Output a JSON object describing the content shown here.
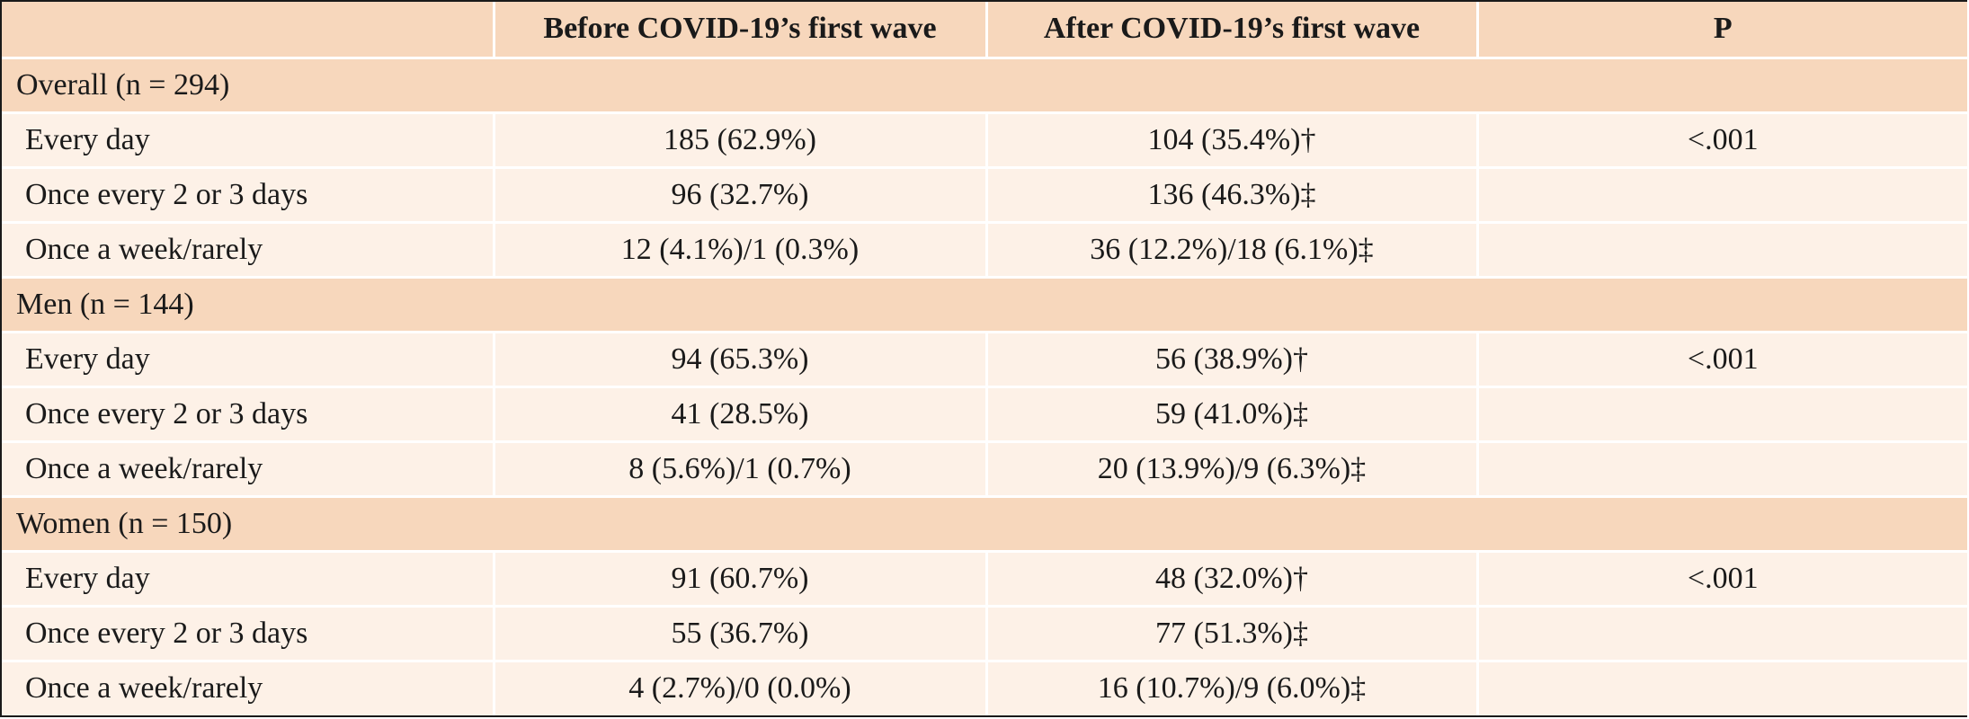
{
  "table": {
    "headers": [
      "",
      "Before COVID-19’s first wave",
      "After COVID-19’s first wave",
      "P"
    ],
    "groups": [
      {
        "label": "Overall (n = 294)",
        "rows": [
          {
            "label": "Every day",
            "before": "185 (62.9%)",
            "after": "104 (35.4%)†",
            "p": "<.001"
          },
          {
            "label": "Once every 2 or 3 days",
            "before": "96 (32.7%)",
            "after": "136 (46.3%)‡",
            "p": ""
          },
          {
            "label": "Once a week/rarely",
            "before": "12 (4.1%)/1 (0.3%)",
            "after": "36 (12.2%)/18 (6.1%)‡",
            "p": ""
          }
        ]
      },
      {
        "label": "Men (n = 144)",
        "rows": [
          {
            "label": "Every day",
            "before": "94 (65.3%)",
            "after": "56 (38.9%)†",
            "p": "<.001"
          },
          {
            "label": "Once every 2 or 3 days",
            "before": "41 (28.5%)",
            "after": "59 (41.0%)‡",
            "p": ""
          },
          {
            "label": "Once a week/rarely",
            "before": "8 (5.6%)/1 (0.7%)",
            "after": "20 (13.9%)/9 (6.3%)‡",
            "p": ""
          }
        ]
      },
      {
        "label": "Women (n = 150)",
        "rows": [
          {
            "label": "Every day",
            "before": "91 (60.7%)",
            "after": "48 (32.0%)†",
            "p": "<.001"
          },
          {
            "label": "Once every 2 or 3 days",
            "before": "55 (36.7%)",
            "after": "77 (51.3%)‡",
            "p": ""
          },
          {
            "label": "Once a week/rarely",
            "before": "4 (2.7%)/0 (0.0%)",
            "after": "16 (10.7%)/9 (6.0%)‡",
            "p": ""
          }
        ]
      }
    ],
    "colors": {
      "header_bg": "#f7d7bc",
      "row_bg": "#fdf1e7",
      "border": "#1a1a1a",
      "gridline": "#ffffff"
    }
  }
}
